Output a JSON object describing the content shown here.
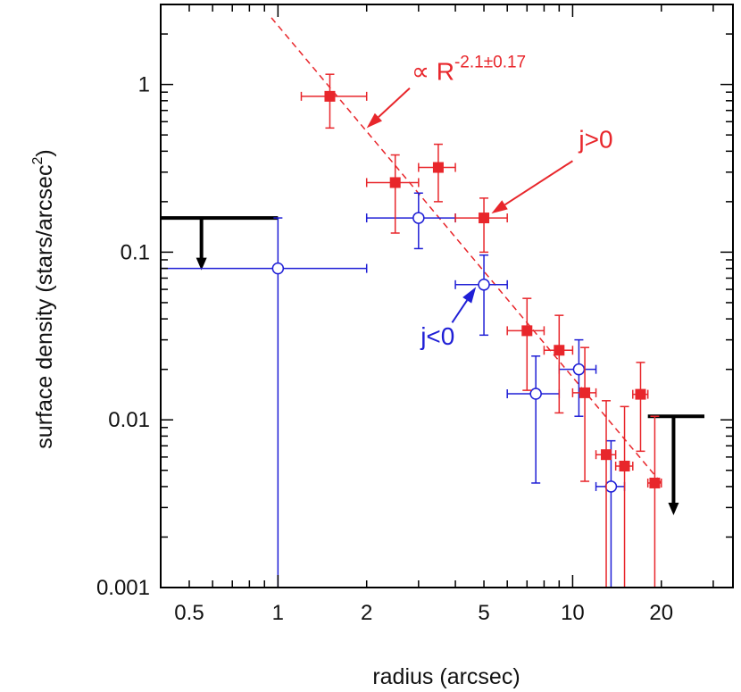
{
  "chart_data": {
    "type": "scatter",
    "xscale": "log",
    "yscale": "log",
    "xlim": [
      0.4,
      35
    ],
    "ylim": [
      0.001,
      3
    ],
    "xlabel": "radius (arcsec)",
    "ylabel_main": "surface density (stars/arcsec",
    "ylabel_sup": "2",
    "ylabel_close": ")",
    "xticks": [
      {
        "value": 0.5,
        "label": "0.5"
      },
      {
        "value": 1,
        "label": "1"
      },
      {
        "value": 2,
        "label": "2"
      },
      {
        "value": 5,
        "label": "5"
      },
      {
        "value": 10,
        "label": "10"
      },
      {
        "value": 20,
        "label": "20"
      }
    ],
    "yticks": [
      {
        "value": 1,
        "label": "1"
      },
      {
        "value": 0.1,
        "label": "0.1"
      },
      {
        "value": 0.01,
        "label": "0.01"
      },
      {
        "value": 0.001,
        "label": "0.001"
      }
    ],
    "colors": {
      "red": "#e8262b",
      "blue": "#1f1fd6",
      "black": "#000000"
    },
    "series": [
      {
        "name": "j>0",
        "marker": "filled-square",
        "color": "#e8262b",
        "points": [
          {
            "x": 1.5,
            "y": 0.85,
            "xerr": [
              1.2,
              2.0
            ],
            "yerr": [
              0.55,
              1.15
            ]
          },
          {
            "x": 2.5,
            "y": 0.26,
            "xerr": [
              2.0,
              3.0
            ],
            "yerr": [
              0.13,
              0.38
            ]
          },
          {
            "x": 3.5,
            "y": 0.32,
            "xerr": [
              3.0,
              4.0
            ],
            "yerr": [
              0.2,
              0.44
            ]
          },
          {
            "x": 5.0,
            "y": 0.16,
            "xerr": [
              4.0,
              6.0
            ],
            "yerr": [
              0.1,
              0.21
            ]
          },
          {
            "x": 7.0,
            "y": 0.034,
            "xerr": [
              6.0,
              8.0
            ],
            "yerr": [
              0.015,
              0.053
            ]
          },
          {
            "x": 9.0,
            "y": 0.026,
            "xerr": [
              8.0,
              10.0
            ],
            "yerr": [
              0.011,
              0.042
            ]
          },
          {
            "x": 11.0,
            "y": 0.0145,
            "xerr": [
              10.0,
              12.0
            ],
            "yerr": [
              0.0043,
              0.027
            ]
          },
          {
            "x": 13.0,
            "y": 0.0062,
            "xerr": [
              12.0,
              14.0
            ],
            "yerr": [
              0.001,
              0.013
            ]
          },
          {
            "x": 15.0,
            "y": 0.0053,
            "xerr": [
              14.0,
              16.0
            ],
            "yerr": [
              0.001,
              0.012
            ]
          },
          {
            "x": 17.0,
            "y": 0.0142,
            "xerr": [
              16.0,
              18.0
            ],
            "yerr": [
              0.0065,
              0.022
            ]
          },
          {
            "x": 19.0,
            "y": 0.0042,
            "xerr": [
              18.0,
              20.0
            ],
            "yerr": [
              0.001,
              0.0105
            ]
          }
        ]
      },
      {
        "name": "j<0",
        "marker": "open-circle",
        "color": "#1f1fd6",
        "points": [
          {
            "x": 1.0,
            "y": 0.08,
            "xerr": [
              0.4,
              2.0
            ],
            "yerr": [
              0.001,
              0.16
            ]
          },
          {
            "x": 3.0,
            "y": 0.16,
            "xerr": [
              2.0,
              4.0
            ],
            "yerr": [
              0.105,
              0.225
            ]
          },
          {
            "x": 5.0,
            "y": 0.064,
            "xerr": [
              4.0,
              6.0
            ],
            "yerr": [
              0.032,
              0.096
            ]
          },
          {
            "x": 7.5,
            "y": 0.0143,
            "xerr": [
              6.0,
              9.0
            ],
            "yerr": [
              0.0042,
              0.024
            ]
          },
          {
            "x": 10.5,
            "y": 0.02,
            "xerr": [
              9.0,
              12.0
            ],
            "yerr": [
              0.0105,
              0.03
            ]
          },
          {
            "x": 13.5,
            "y": 0.004,
            "xerr": [
              12.0,
              15.0
            ],
            "yerr": [
              0.001,
              0.0075
            ]
          }
        ]
      }
    ],
    "upper_limits": [
      {
        "x_from": 0.4,
        "x_to": 1.0,
        "y": 0.16,
        "arrow_x": 0.55,
        "arrow_to": 0.078
      },
      {
        "x_from": 18.0,
        "x_to": 28.0,
        "y": 0.0105,
        "arrow_x": 22.0,
        "arrow_to": 0.0027
      }
    ],
    "fit_line": {
      "x_start": 0.95,
      "y_start": 2.5,
      "x_end": 20.0,
      "y_end": 0.0042,
      "color": "#e8262b",
      "style": "dashed"
    },
    "annotations": {
      "power_law": {
        "prefix": "∝ R",
        "exponent": "-2.1±0.17",
        "text_x": 2.8,
        "text_y": 1.0,
        "arrow_from_x": 2.8,
        "arrow_from_y": 0.95,
        "arrow_to_x": 2.0,
        "arrow_to_y": 0.55
      },
      "j_pos": {
        "text": "j>0",
        "text_x": 10.5,
        "text_y": 0.42,
        "arrow_from_x": 10.0,
        "arrow_from_y": 0.35,
        "arrow_to_x": 5.3,
        "arrow_to_y": 0.17
      },
      "j_neg": {
        "text": "j<0",
        "text_x": 3.05,
        "text_y": 0.028,
        "arrow_from_x": 3.9,
        "arrow_from_y": 0.038,
        "arrow_to_x": 4.7,
        "arrow_to_y": 0.062
      }
    }
  }
}
